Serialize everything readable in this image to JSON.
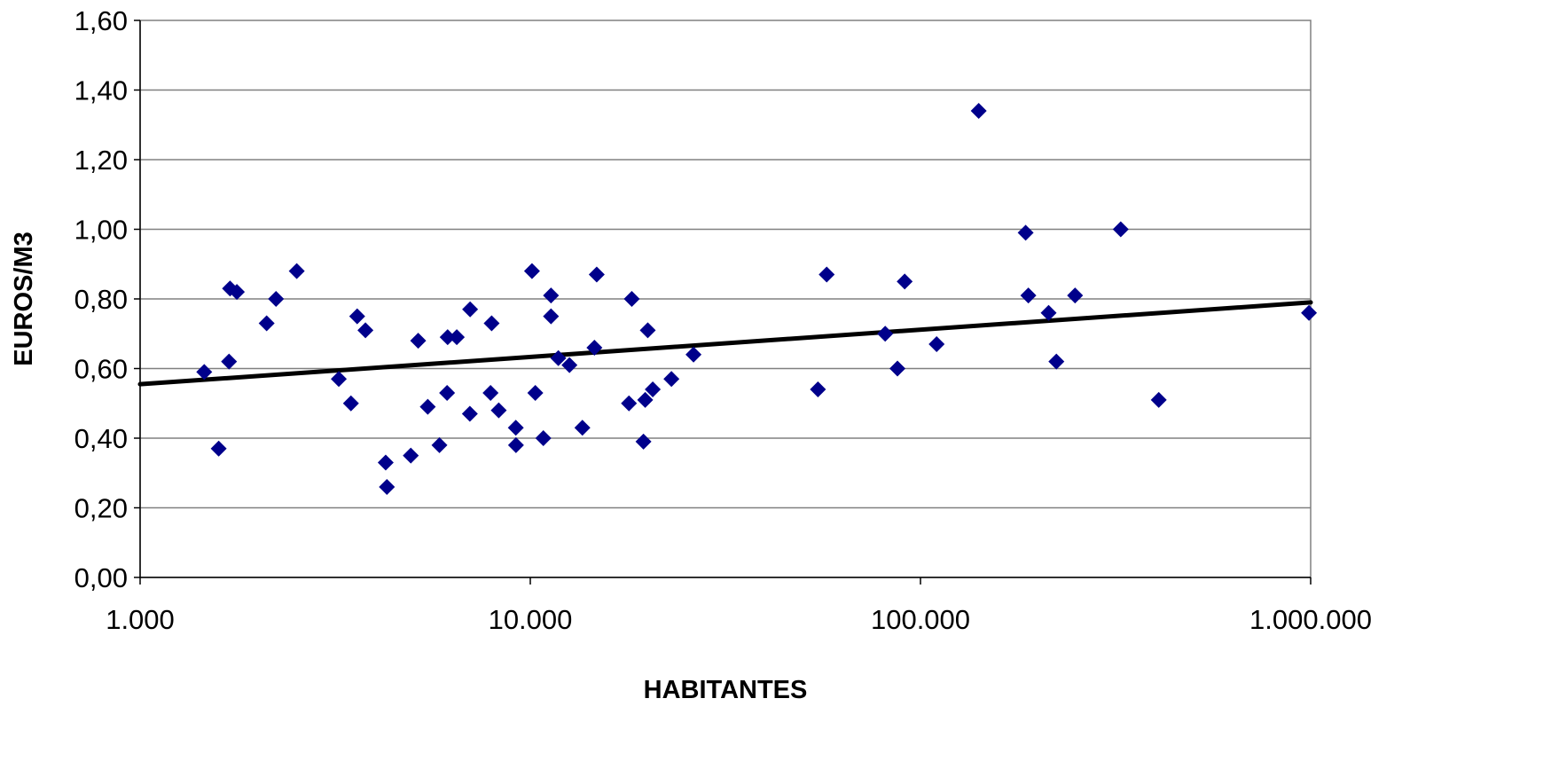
{
  "chart_data": {
    "type": "scatter",
    "title": "",
    "xlabel": "HABITANTES",
    "ylabel": "EUROS/M3",
    "xscale": "log",
    "xlim": [
      1000,
      1000000
    ],
    "ylim": [
      0,
      1.6
    ],
    "grid": "horizontal",
    "legend": "none",
    "x_ticks": [
      {
        "value": 1000,
        "label": "1.000"
      },
      {
        "value": 10000,
        "label": "10.000"
      },
      {
        "value": 100000,
        "label": "100.000"
      },
      {
        "value": 1000000,
        "label": "1.000.000"
      }
    ],
    "y_ticks": [
      {
        "value": 0,
        "label": "0,00"
      },
      {
        "value": 0.2,
        "label": "0,20"
      },
      {
        "value": 0.4,
        "label": "0,40"
      },
      {
        "value": 0.6,
        "label": "0,60"
      },
      {
        "value": 0.8,
        "label": "0,80"
      },
      {
        "value": 1.0,
        "label": "1,00"
      },
      {
        "value": 1.2,
        "label": "1,20"
      },
      {
        "value": 1.4,
        "label": "1,40"
      },
      {
        "value": 1.6,
        "label": "1,60"
      }
    ],
    "colors": {
      "points": "#00008B",
      "trend": "#000000",
      "grid": "#808080"
    },
    "series": [
      {
        "marker": "diamond",
        "points": [
          [
            1460,
            0.59
          ],
          [
            1590,
            0.37
          ],
          [
            1690,
            0.62
          ],
          [
            1700,
            0.83
          ],
          [
            1770,
            0.82
          ],
          [
            2110,
            0.73
          ],
          [
            2230,
            0.8
          ],
          [
            2520,
            0.88
          ],
          [
            3230,
            0.57
          ],
          [
            3470,
            0.5
          ],
          [
            3600,
            0.75
          ],
          [
            3780,
            0.71
          ],
          [
            4260,
            0.33
          ],
          [
            4290,
            0.26
          ],
          [
            4940,
            0.35
          ],
          [
            5160,
            0.68
          ],
          [
            5460,
            0.49
          ],
          [
            5850,
            0.38
          ],
          [
            6120,
            0.53
          ],
          [
            6140,
            0.69
          ],
          [
            6480,
            0.69
          ],
          [
            7000,
            0.47
          ],
          [
            7010,
            0.77
          ],
          [
            7910,
            0.53
          ],
          [
            7960,
            0.73
          ],
          [
            8300,
            0.48
          ],
          [
            9180,
            0.43
          ],
          [
            9190,
            0.38
          ],
          [
            10100,
            0.88
          ],
          [
            10300,
            0.53
          ],
          [
            10800,
            0.4
          ],
          [
            11300,
            0.75
          ],
          [
            11300,
            0.81
          ],
          [
            11800,
            0.63
          ],
          [
            12600,
            0.61
          ],
          [
            13600,
            0.43
          ],
          [
            14600,
            0.66
          ],
          [
            14800,
            0.87
          ],
          [
            17900,
            0.5
          ],
          [
            18200,
            0.8
          ],
          [
            19500,
            0.39
          ],
          [
            19700,
            0.51
          ],
          [
            20000,
            0.71
          ],
          [
            20600,
            0.54
          ],
          [
            23000,
            0.57
          ],
          [
            26200,
            0.64
          ],
          [
            54600,
            0.54
          ],
          [
            57500,
            0.87
          ],
          [
            81200,
            0.7
          ],
          [
            87300,
            0.6
          ],
          [
            91100,
            0.85
          ],
          [
            110000,
            0.67
          ],
          [
            141000,
            1.34
          ],
          [
            186000,
            0.99
          ],
          [
            189000,
            0.81
          ],
          [
            213000,
            0.76
          ],
          [
            223000,
            0.62
          ],
          [
            249000,
            0.81
          ],
          [
            326000,
            1.0
          ],
          [
            408000,
            0.51
          ],
          [
            990000,
            0.76
          ]
        ]
      }
    ],
    "trendline": {
      "type": "logarithmic",
      "x": [
        1000,
        1000000
      ],
      "y": [
        0.555,
        0.79
      ]
    }
  }
}
